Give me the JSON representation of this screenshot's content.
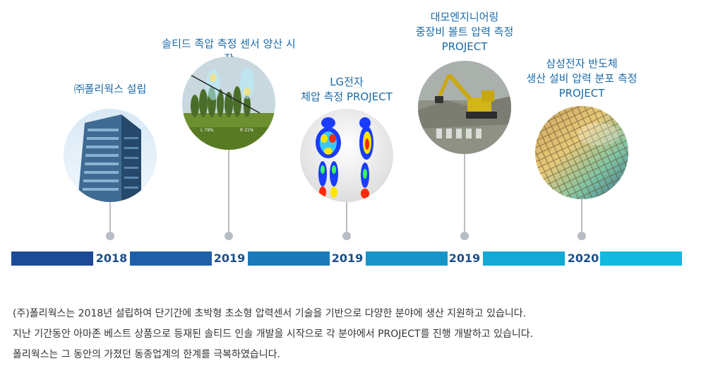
{
  "milestones": [
    {
      "title": "㈜폴리웍스 설립",
      "year": "2018",
      "photo": "building-photo"
    },
    {
      "title": "솔티드 족압 측정 센서 양산 시작",
      "year": "2019",
      "photo": "foot-pressure-field-photo",
      "overlay_left": "L 79%",
      "overlay_right": "R 21%"
    },
    {
      "title": "LG전자\n체압 측정 PROJECT",
      "year": "2019",
      "photo": "body-pressure-map-photo"
    },
    {
      "title": "대모엔지니어링\n중장비 볼트 압력 측정\nPROJECT",
      "year": "2019",
      "photo": "excavator-photo"
    },
    {
      "title": "삼성전자 반도체\n생산 설비 압력 분포 측정\nPROJECT",
      "year": "2020",
      "photo": "semiconductor-wafer-photo"
    }
  ],
  "description": [
    "(주)폴리웍스는 2018년 설립하여 단기간에 초박형 초소형 압력센서 기술을 기반으로 다양한 분야에  생산 지원하고 있습니다.",
    "지난 기간동안 아마존 베스트 상품으로 등재된 솔티드 인솔 개발을 시작으로 각 분야에서 PROJECT를 진행 개발하고 있습니다.",
    "폴리웍스는 그 동안의 가졌던 동종업계의 한계를 극복하였습니다."
  ],
  "colors": {
    "title_text": "#1a6aa8",
    "year_text": "#1d4e8a",
    "connector": "#b7bdc4",
    "bar_gradient": [
      "#1d4a96",
      "#1e6db0",
      "#1b8fc4",
      "#16a9d4",
      "#10b9dd"
    ]
  }
}
